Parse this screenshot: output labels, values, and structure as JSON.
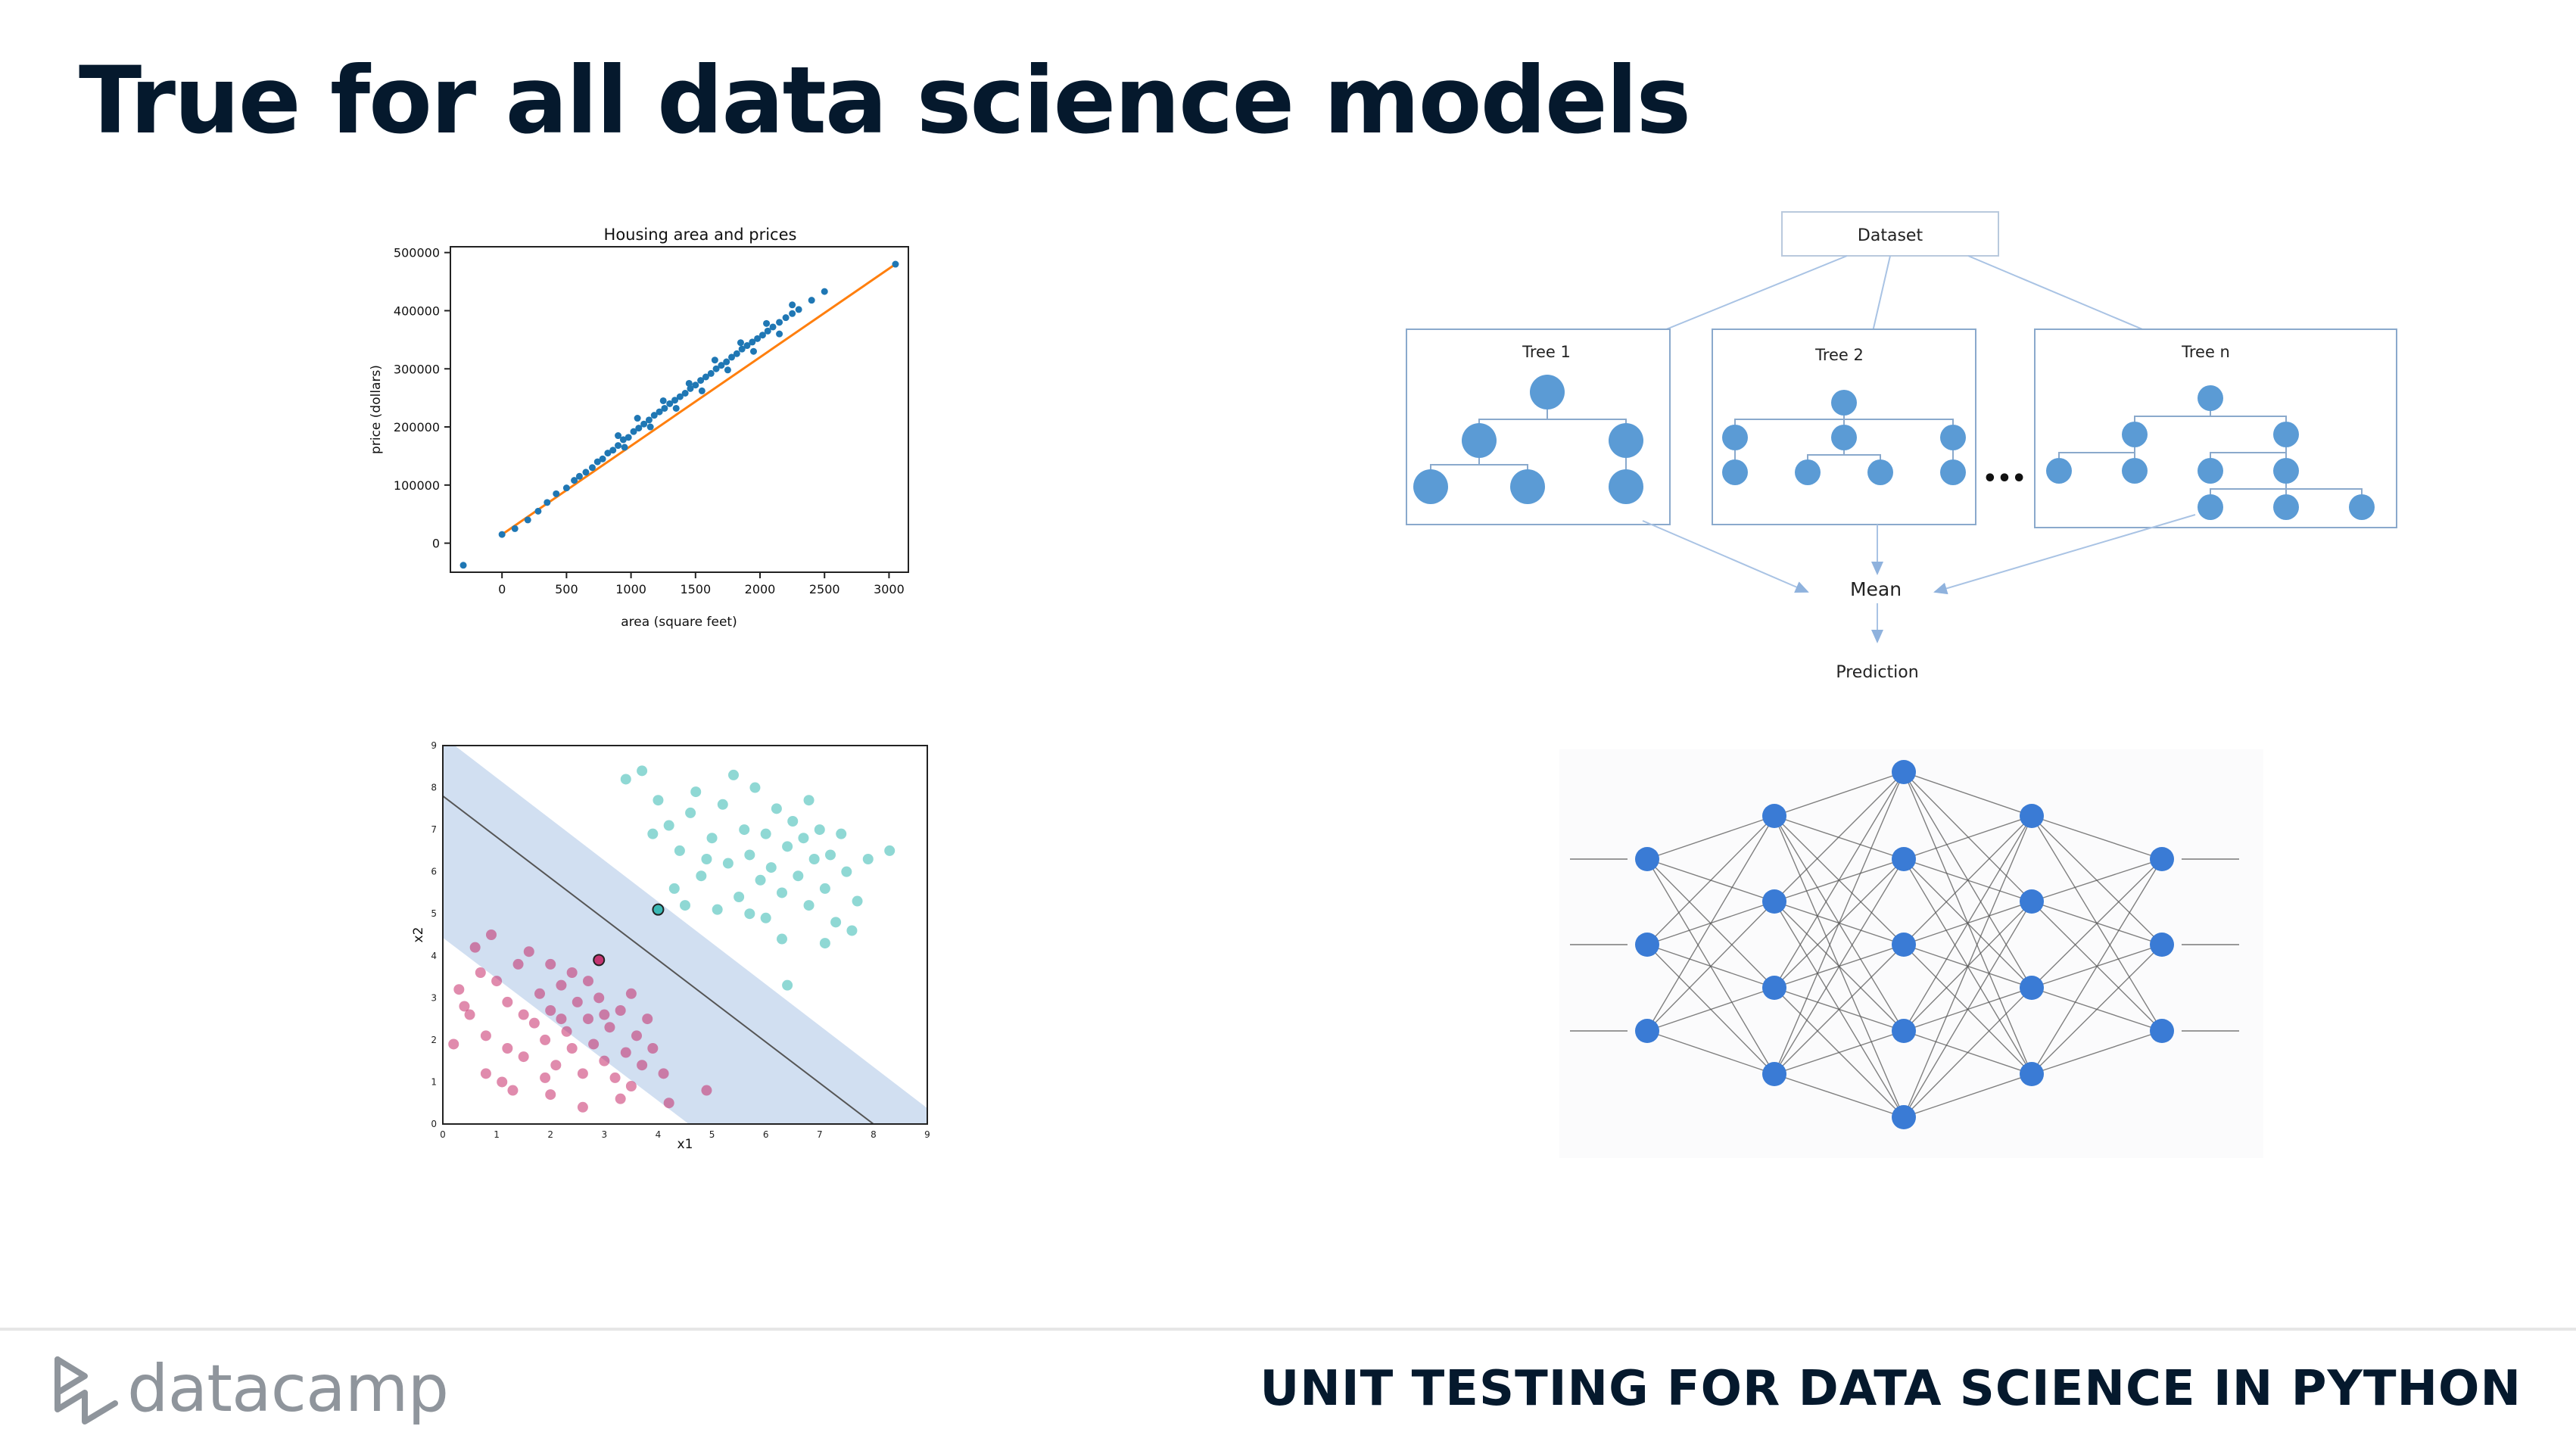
{
  "slide": {
    "title": "True for all data science models",
    "footer_logo_text": "datacamp",
    "footer_course": "UNIT TESTING FOR DATA SCIENCE IN PYTHON"
  },
  "random_forest": {
    "dataset": "Dataset",
    "trees": [
      "Tree 1",
      "Tree 2",
      "Tree n"
    ],
    "ellipsis": "•••",
    "mean": "Mean",
    "prediction": "Prediction"
  },
  "colors": {
    "title": "#05192d",
    "scatter_points": "#1f77b4",
    "fit_line": "#ff7f0e",
    "tree_nodes": "#5b9bd5",
    "nn_nodes": "#3a7bd5",
    "svm_class_a": "#c2185b",
    "svm_class_b": "#20b2aa",
    "svm_margin": "#c9d9ee"
  },
  "chart_data": [
    {
      "type": "scatter",
      "title": "Housing area and prices",
      "xlabel": "area (square feet)",
      "ylabel": "price (dollars)",
      "xlim": [
        -400,
        3150
      ],
      "ylim": [
        -50000,
        510000
      ],
      "xticks": [
        "0",
        "500",
        "1000",
        "1500",
        "2000",
        "2500",
        "3000"
      ],
      "yticks": [
        "0",
        "100000",
        "200000",
        "300000",
        "400000",
        "500000"
      ],
      "series": [
        {
          "points": [
            [
              -300,
              -38000
            ],
            [
              0,
              15000
            ],
            [
              100,
              25000
            ],
            [
              200,
              40000
            ],
            [
              280,
              55000
            ],
            [
              350,
              70000
            ],
            [
              420,
              85000
            ],
            [
              500,
              95000
            ],
            [
              560,
              108000
            ],
            [
              600,
              115000
            ],
            [
              650,
              122000
            ],
            [
              700,
              130000
            ],
            [
              740,
              140000
            ],
            [
              780,
              145000
            ],
            [
              820,
              155000
            ],
            [
              860,
              160000
            ],
            [
              900,
              168000
            ],
            [
              940,
              178000
            ],
            [
              980,
              182000
            ],
            [
              1020,
              192000
            ],
            [
              1060,
              198000
            ],
            [
              1100,
              205000
            ],
            [
              1140,
              212000
            ],
            [
              1180,
              220000
            ],
            [
              1220,
              226000
            ],
            [
              1260,
              232000
            ],
            [
              1300,
              240000
            ],
            [
              1340,
              246000
            ],
            [
              1380,
              252000
            ],
            [
              1420,
              258000
            ],
            [
              1460,
              266000
            ],
            [
              1500,
              272000
            ],
            [
              1540,
              280000
            ],
            [
              1580,
              286000
            ],
            [
              1620,
              292000
            ],
            [
              1660,
              300000
            ],
            [
              1700,
              306000
            ],
            [
              1740,
              312000
            ],
            [
              1780,
              320000
            ],
            [
              1820,
              326000
            ],
            [
              1860,
              334000
            ],
            [
              1900,
              340000
            ],
            [
              1940,
              346000
            ],
            [
              1980,
              352000
            ],
            [
              2020,
              358000
            ],
            [
              2060,
              365000
            ],
            [
              2100,
              372000
            ],
            [
              2150,
              380000
            ],
            [
              2200,
              388000
            ],
            [
              2250,
              395000
            ],
            [
              2300,
              402000
            ],
            [
              2400,
              418000
            ],
            [
              2500,
              433000
            ],
            [
              3050,
              480000
            ],
            [
              900,
              185000
            ],
            [
              950,
              165000
            ],
            [
              1050,
              215000
            ],
            [
              1150,
              200000
            ],
            [
              1250,
              245000
            ],
            [
              1350,
              232000
            ],
            [
              1450,
              275000
            ],
            [
              1550,
              262000
            ],
            [
              1650,
              315000
            ],
            [
              1750,
              298000
            ],
            [
              1850,
              345000
            ],
            [
              1950,
              330000
            ],
            [
              2050,
              378000
            ],
            [
              2150,
              360000
            ],
            [
              2250,
              410000
            ]
          ]
        },
        {
          "name": "",
          "fit_line": [
            [
              0,
              15000
            ],
            [
              3050,
              480000
            ]
          ]
        }
      ]
    },
    {
      "type": "scatter",
      "xlabel": "x1",
      "ylabel": "x2",
      "xlim": [
        0,
        9
      ],
      "ylim": [
        0,
        9
      ],
      "xticks": [
        "0",
        "1",
        "2",
        "3",
        "4",
        "5",
        "6",
        "7",
        "8",
        "9"
      ],
      "yticks": [
        "0",
        "1",
        "2",
        "3",
        "4",
        "5",
        "6",
        "7",
        "8",
        "9"
      ],
      "decision_line": [
        [
          0,
          7.8
        ],
        [
          8,
          0
        ]
      ],
      "margin_width": 1.4,
      "support_vectors": [
        [
          2.9,
          3.9
        ],
        [
          4.0,
          5.1
        ]
      ],
      "series": [
        {
          "points": [
            [
              0.3,
              3.2
            ],
            [
              0.5,
              2.6
            ],
            [
              0.8,
              2.1
            ],
            [
              1.0,
              3.4
            ],
            [
              1.2,
              2.9
            ],
            [
              1.4,
              3.8
            ],
            [
              1.5,
              1.6
            ],
            [
              1.7,
              2.4
            ],
            [
              1.8,
              3.1
            ],
            [
              1.9,
              2.0
            ],
            [
              2.0,
              2.7
            ],
            [
              2.1,
              1.4
            ],
            [
              2.2,
              3.3
            ],
            [
              2.3,
              2.2
            ],
            [
              2.4,
              1.8
            ],
            [
              2.5,
              2.9
            ],
            [
              2.6,
              1.2
            ],
            [
              2.7,
              2.5
            ],
            [
              2.8,
              1.9
            ],
            [
              2.9,
              3.0
            ],
            [
              3.0,
              1.5
            ],
            [
              3.1,
              2.3
            ],
            [
              3.2,
              1.1
            ],
            [
              3.3,
              2.7
            ],
            [
              3.4,
              1.7
            ],
            [
              3.5,
              0.9
            ],
            [
              3.6,
              2.1
            ],
            [
              3.7,
              1.4
            ],
            [
              3.9,
              1.8
            ],
            [
              4.1,
              1.2
            ],
            [
              4.9,
              0.8
            ],
            [
              0.6,
              4.2
            ],
            [
              0.9,
              4.5
            ],
            [
              1.1,
              1.0
            ],
            [
              1.3,
              0.8
            ],
            [
              1.6,
              4.1
            ],
            [
              2.0,
              0.7
            ],
            [
              2.4,
              3.6
            ],
            [
              0.2,
              1.9
            ],
            [
              0.4,
              2.8
            ],
            [
              0.7,
              3.6
            ],
            [
              1.5,
              2.6
            ],
            [
              2.2,
              2.5
            ],
            [
              2.7,
              3.4
            ],
            [
              3.0,
              2.6
            ],
            [
              3.3,
              0.6
            ],
            [
              3.8,
              2.5
            ],
            [
              4.2,
              0.5
            ],
            [
              1.9,
              1.1
            ],
            [
              2.6,
              0.4
            ],
            [
              1.2,
              1.8
            ],
            [
              0.8,
              1.2
            ],
            [
              3.5,
              3.1
            ],
            [
              2.0,
              3.8
            ]
          ]
        },
        {
          "points": [
            [
              3.4,
              8.2
            ],
            [
              3.7,
              8.4
            ],
            [
              4.0,
              7.7
            ],
            [
              4.2,
              7.1
            ],
            [
              4.4,
              6.5
            ],
            [
              4.6,
              7.4
            ],
            [
              4.8,
              5.9
            ],
            [
              5.0,
              6.8
            ],
            [
              5.2,
              7.6
            ],
            [
              5.3,
              6.2
            ],
            [
              5.5,
              5.4
            ],
            [
              5.6,
              7.0
            ],
            [
              5.7,
              6.4
            ],
            [
              5.8,
              8.0
            ],
            [
              5.9,
              5.8
            ],
            [
              6.0,
              6.9
            ],
            [
              6.1,
              6.1
            ],
            [
              6.2,
              7.5
            ],
            [
              6.3,
              5.5
            ],
            [
              6.4,
              6.6
            ],
            [
              6.5,
              7.2
            ],
            [
              6.6,
              5.9
            ],
            [
              6.7,
              6.8
            ],
            [
              6.8,
              5.2
            ],
            [
              6.9,
              6.3
            ],
            [
              7.0,
              7.0
            ],
            [
              7.1,
              5.6
            ],
            [
              7.2,
              6.4
            ],
            [
              7.3,
              4.8
            ],
            [
              7.5,
              6.0
            ],
            [
              7.7,
              5.3
            ],
            [
              7.9,
              6.3
            ],
            [
              8.3,
              6.5
            ],
            [
              7.6,
              4.6
            ],
            [
              6.4,
              3.3
            ],
            [
              4.3,
              5.6
            ],
            [
              4.7,
              7.9
            ],
            [
              5.1,
              5.1
            ],
            [
              5.4,
              8.3
            ],
            [
              6.0,
              4.9
            ],
            [
              6.8,
              7.7
            ],
            [
              7.4,
              6.9
            ],
            [
              4.9,
              6.3
            ],
            [
              5.7,
              5.0
            ],
            [
              6.3,
              4.4
            ],
            [
              7.1,
              4.3
            ],
            [
              3.9,
              6.9
            ],
            [
              4.5,
              5.2
            ]
          ]
        }
      ]
    }
  ]
}
